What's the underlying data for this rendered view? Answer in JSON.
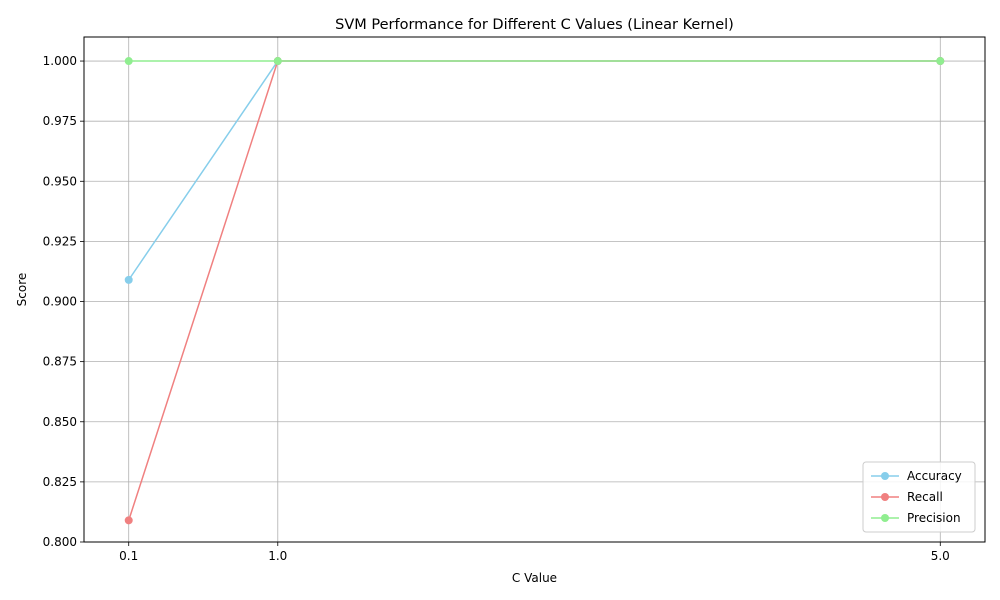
{
  "chart_data": {
    "type": "line",
    "title": "SVM Performance for Different C Values (Linear Kernel)",
    "xlabel": "C Value",
    "ylabel": "Score",
    "x": [
      0.1,
      1.0,
      5.0
    ],
    "x_tick_labels": [
      "0.1",
      "1.0",
      "5.0"
    ],
    "xlim": [
      -0.17,
      5.27
    ],
    "ylim": [
      0.8,
      1.01
    ],
    "y_ticks": [
      0.8,
      0.825,
      0.85,
      0.875,
      0.9,
      0.925,
      0.95,
      0.975,
      1.0
    ],
    "y_tick_labels": [
      "0.800",
      "0.825",
      "0.850",
      "0.875",
      "0.900",
      "0.925",
      "0.950",
      "0.975",
      "1.000"
    ],
    "grid": true,
    "legend_position": "bottom-right",
    "series": [
      {
        "name": "Accuracy",
        "color": "#87ceeb",
        "values": [
          0.909,
          1.0,
          1.0
        ]
      },
      {
        "name": "Recall",
        "color": "#f08080",
        "values": [
          0.809,
          1.0,
          1.0
        ]
      },
      {
        "name": "Precision",
        "color": "#90ee90",
        "values": [
          1.0,
          1.0,
          1.0
        ]
      }
    ]
  }
}
